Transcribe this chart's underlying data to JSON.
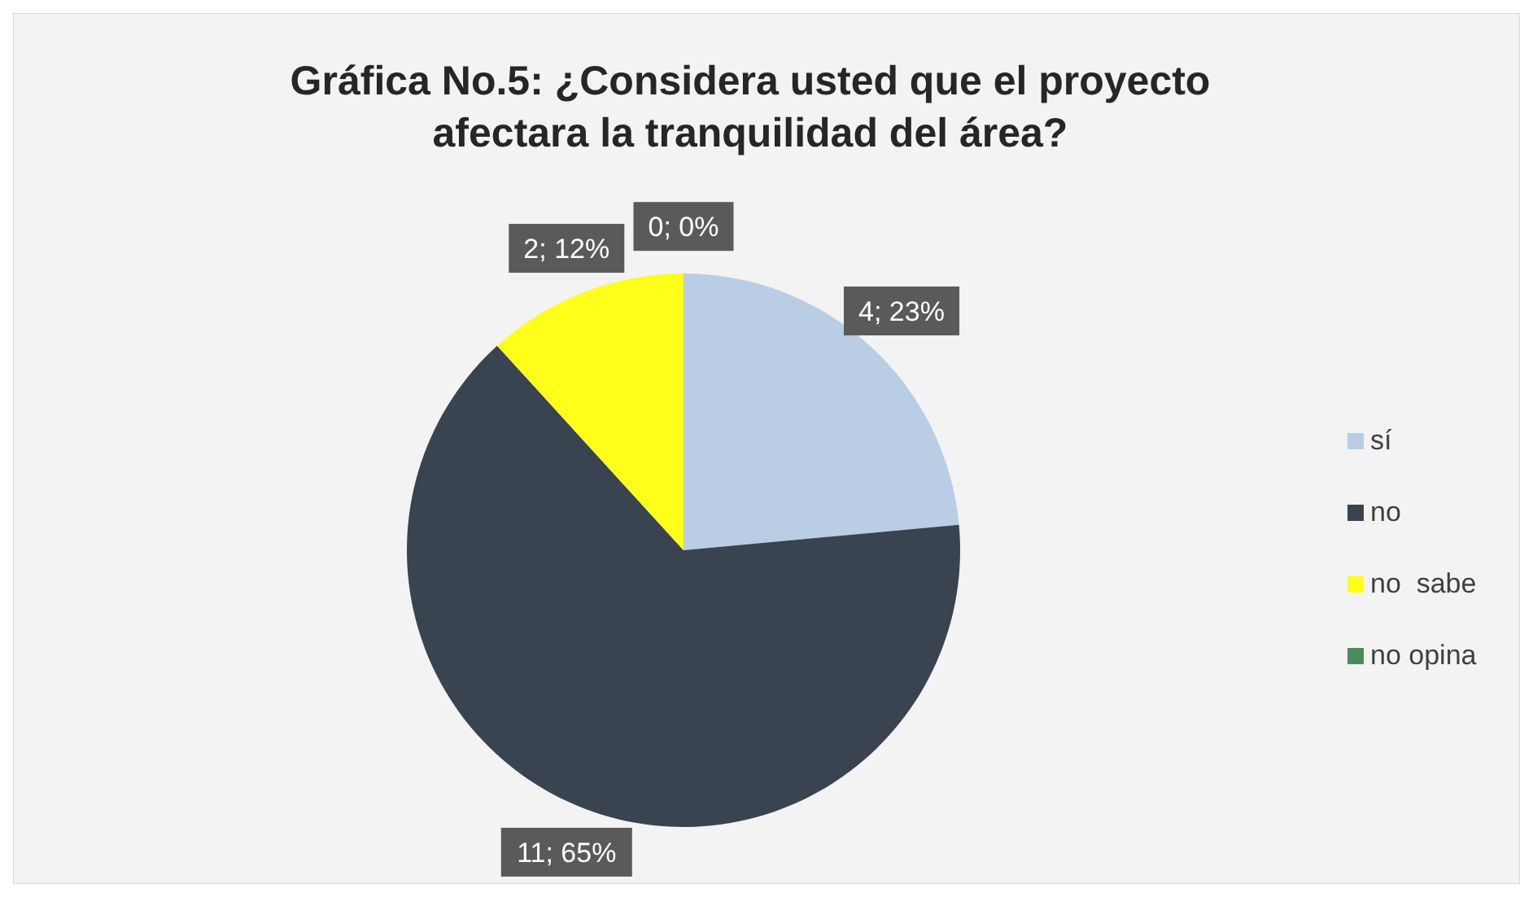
{
  "chart_data": {
    "type": "pie",
    "title": "Gráfica No.5: ¿Considera usted que el proyecto afectara la tranquilidad del área?",
    "categories": [
      "sí",
      "no",
      "no  sabe",
      "no opina"
    ],
    "values": [
      4,
      11,
      2,
      0
    ],
    "value_labels": [
      "4; 23%",
      "11; 65%",
      "2; 12%",
      "0; 0%"
    ],
    "colors": [
      "#b9cde5",
      "#3a4350",
      "#ffff1a",
      "#4a8c5c"
    ],
    "legend": "right"
  }
}
